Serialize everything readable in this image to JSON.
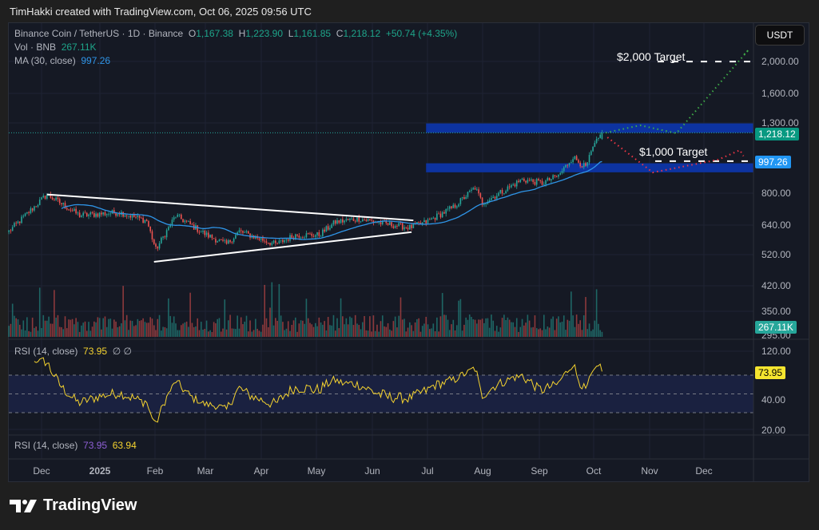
{
  "credit": "TimHakki created with TradingView.com, Oct 06, 2025 09:56 UTC",
  "legend": {
    "symbol": "Binance Coin / TetherUS · 1D · Binance",
    "o_label": "O",
    "o": "1,167.38",
    "h_label": "H",
    "h": "1,223.90",
    "l_label": "L",
    "l": "1,161.85",
    "c_label": "C",
    "c": "1,218.12",
    "change": "+50.74 (+4.35%)",
    "vol_label": "Vol · BNB",
    "vol": "267.11K",
    "ma_label": "MA (30, close)",
    "ma": "997.26"
  },
  "currency_button": "USDT",
  "price_axis": [
    "2,000.00",
    "1,600.00",
    "1,300.00",
    "800.00",
    "640.00",
    "520.00",
    "420.00",
    "350.00",
    "295.00"
  ],
  "price_tags": {
    "last": "1,218.12",
    "ma": "997.26",
    "volume": "267.11K"
  },
  "rsi1": {
    "label": "RSI (14, close)",
    "value": "73.95",
    "icons": "∅ ∅",
    "axis": [
      "120.00",
      "40.00",
      "20.00"
    ],
    "tag": "73.95"
  },
  "rsi2": {
    "label": "RSI (14, close)",
    "value1": "73.95",
    "value2": "63.94"
  },
  "time_axis": [
    "Dec",
    "2025",
    "Feb",
    "Mar",
    "Apr",
    "May",
    "Jun",
    "Jul",
    "Aug",
    "Sep",
    "Oct",
    "Nov",
    "Dec"
  ],
  "annotations": {
    "target_high": "$2,000 Target",
    "target_low": "$1,000 Target"
  },
  "logo": "TradingView",
  "colors": {
    "up": "#26a69a",
    "down": "#ef5350",
    "ma": "#2f95e8",
    "rsi": "#f5d32f",
    "zone": "#0d33a0",
    "bull_path": "#3fae49",
    "bear_path": "#f23645",
    "background": "#151924"
  },
  "chart_data": {
    "type": "candlestick",
    "symbol": "BNB/USDT",
    "interval": "1D",
    "y_scale": "log",
    "ylim": [
      290,
      2200
    ],
    "price_path": [
      [
        "2024-11-13",
        613
      ],
      [
        "2024-12-04",
        793
      ],
      [
        "2024-12-22",
        685
      ],
      [
        "2025-01-13",
        700
      ],
      [
        "2025-01-28",
        660
      ],
      [
        "2025-02-02",
        540
      ],
      [
        "2025-02-13",
        685
      ],
      [
        "2025-03-02",
        598
      ],
      [
        "2025-03-13",
        560
      ],
      [
        "2025-03-20",
        613
      ],
      [
        "2025-04-09",
        560
      ],
      [
        "2025-04-20",
        598
      ],
      [
        "2025-05-03",
        598
      ],
      [
        "2025-05-12",
        654
      ],
      [
        "2025-05-25",
        670
      ],
      [
        "2025-06-07",
        648
      ],
      [
        "2025-06-22",
        630
      ],
      [
        "2025-07-01",
        654
      ],
      [
        "2025-07-16",
        725
      ],
      [
        "2025-07-28",
        831
      ],
      [
        "2025-08-01",
        746
      ],
      [
        "2025-08-12",
        809
      ],
      [
        "2025-08-23",
        880
      ],
      [
        "2025-09-03",
        858
      ],
      [
        "2025-09-12",
        903
      ],
      [
        "2025-09-20",
        1030
      ],
      [
        "2025-09-27",
        955
      ],
      [
        "2025-10-01",
        1094
      ],
      [
        "2025-10-06",
        1218.12
      ]
    ],
    "last_ohlc": {
      "open": 1167.38,
      "high": 1223.9,
      "low": 1161.85,
      "close": 1218.12
    },
    "ma30_last": 997.26,
    "volume_last": 267110,
    "rsi_last": 73.95,
    "rsi_levels": [
      70,
      50,
      30
    ],
    "triangle": {
      "upper": [
        [
          "2024-12-04",
          793
        ],
        [
          "2025-06-24",
          662
        ]
      ],
      "lower": [
        [
          "2025-02-01",
          496
        ],
        [
          "2025-06-23",
          610
        ]
      ]
    },
    "zones": [
      {
        "from": "2025-07-01",
        "low": 1218,
        "high": 1300
      },
      {
        "from": "2025-07-01",
        "low": 925,
        "high": 985
      }
    ],
    "targets": [
      {
        "label": "$2,000 Target",
        "price": 2000
      },
      {
        "label": "$1,000 Target",
        "price": 1000
      }
    ],
    "bull_projection": [
      [
        "2025-10-08",
        1218
      ],
      [
        "2025-10-27",
        1283
      ],
      [
        "2025-11-16",
        1214
      ],
      [
        "2025-12-26",
        2175
      ],
      [
        "2025-12-23",
        2090
      ]
    ],
    "bear_projection": [
      [
        "2025-10-09",
        1180
      ],
      [
        "2025-11-03",
        924
      ],
      [
        "2025-12-09",
        1010
      ],
      [
        "2025-12-21",
        1079
      ],
      [
        "2025-12-23",
        1036
      ]
    ]
  }
}
